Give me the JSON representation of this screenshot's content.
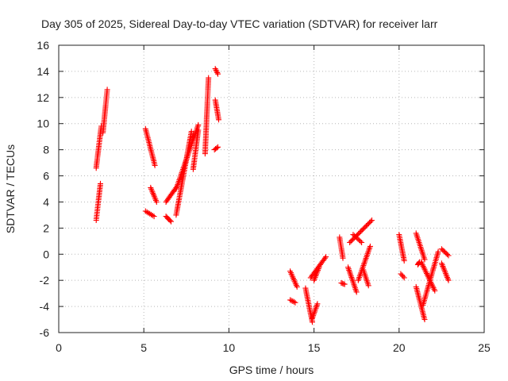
{
  "chart_data": {
    "type": "scatter",
    "title": "Day 305 of 2025, Sidereal Day-to-day VTEC variation (SDTVAR) for receiver larr",
    "xlabel": "GPS time / hours",
    "ylabel": "SDTVAR / TECUs",
    "xlim": [
      0,
      25
    ],
    "ylim": [
      -6,
      16
    ],
    "xticks": [
      0,
      5,
      10,
      15,
      20,
      25
    ],
    "yticks": [
      -6,
      -4,
      -2,
      0,
      2,
      4,
      6,
      8,
      10,
      12,
      14,
      16
    ],
    "grid": true,
    "marker": "+",
    "color": "#ff0000",
    "tracks": [
      {
        "x0": 2.2,
        "x1": 2.45,
        "y0": 2.6,
        "y1": 5.4
      },
      {
        "x0": 2.2,
        "x1": 2.5,
        "y0": 6.6,
        "y1": 9.8
      },
      {
        "x0": 2.6,
        "x1": 2.85,
        "y0": 9.3,
        "y1": 12.6
      },
      {
        "x0": 5.1,
        "x1": 5.6,
        "y0": 3.3,
        "y1": 2.9
      },
      {
        "x0": 5.1,
        "x1": 5.65,
        "y0": 9.6,
        "y1": 6.8
      },
      {
        "x0": 5.4,
        "x1": 5.75,
        "y0": 5.1,
        "y1": 4.0
      },
      {
        "x0": 6.3,
        "x1": 6.6,
        "y0": 2.9,
        "y1": 2.5
      },
      {
        "x0": 6.3,
        "x1": 6.9,
        "y0": 4.0,
        "y1": 5.1
      },
      {
        "x0": 6.9,
        "x1": 7.8,
        "y0": 3.0,
        "y1": 9.4
      },
      {
        "x0": 6.9,
        "x1": 8.2,
        "y0": 5.0,
        "y1": 9.9
      },
      {
        "x0": 7.9,
        "x1": 8.2,
        "y0": 6.5,
        "y1": 9.5
      },
      {
        "x0": 8.6,
        "x1": 8.8,
        "y0": 7.7,
        "y1": 13.5
      },
      {
        "x0": 9.2,
        "x1": 9.35,
        "y0": 14.2,
        "y1": 13.8
      },
      {
        "x0": 9.2,
        "x1": 9.4,
        "y0": 11.8,
        "y1": 10.3
      },
      {
        "x0": 9.15,
        "x1": 9.35,
        "y0": 8.0,
        "y1": 8.2
      },
      {
        "x0": 13.6,
        "x1": 14.0,
        "y0": -1.3,
        "y1": -2.5
      },
      {
        "x0": 13.6,
        "x1": 13.9,
        "y0": -3.5,
        "y1": -3.7
      },
      {
        "x0": 14.5,
        "x1": 14.9,
        "y0": -2.6,
        "y1": -5.2
      },
      {
        "x0": 14.8,
        "x1": 15.7,
        "y0": -1.8,
        "y1": -0.2
      },
      {
        "x0": 14.9,
        "x1": 15.2,
        "y0": -4.9,
        "y1": -3.8
      },
      {
        "x0": 15.0,
        "x1": 15.3,
        "y0": -2.0,
        "y1": -1.0
      },
      {
        "x0": 16.5,
        "x1": 16.7,
        "y0": 1.3,
        "y1": -0.3
      },
      {
        "x0": 16.6,
        "x1": 16.8,
        "y0": -2.2,
        "y1": -2.3
      },
      {
        "x0": 17.0,
        "x1": 17.5,
        "y0": -1.0,
        "y1": -2.9
      },
      {
        "x0": 17.1,
        "x1": 18.4,
        "y0": 0.9,
        "y1": 2.6
      },
      {
        "x0": 17.3,
        "x1": 17.8,
        "y0": 1.5,
        "y1": 0.9
      },
      {
        "x0": 17.6,
        "x1": 18.3,
        "y0": -2.0,
        "y1": 0.6
      },
      {
        "x0": 17.9,
        "x1": 18.2,
        "y0": -1.2,
        "y1": -2.4
      },
      {
        "x0": 20.0,
        "x1": 20.3,
        "y0": 1.5,
        "y1": -0.5
      },
      {
        "x0": 20.1,
        "x1": 20.3,
        "y0": -1.5,
        "y1": -1.8
      },
      {
        "x0": 21.0,
        "x1": 21.5,
        "y0": 1.6,
        "y1": -0.4
      },
      {
        "x0": 21.0,
        "x1": 21.5,
        "y0": -2.5,
        "y1": -5.0
      },
      {
        "x0": 21.1,
        "x1": 21.2,
        "y0": -0.8,
        "y1": -0.6
      },
      {
        "x0": 21.3,
        "x1": 22.1,
        "y0": -0.6,
        "y1": -2.8
      },
      {
        "x0": 21.4,
        "x1": 22.3,
        "y0": -3.9,
        "y1": 0.2
      },
      {
        "x0": 22.5,
        "x1": 22.9,
        "y0": 0.4,
        "y1": -0.1
      },
      {
        "x0": 22.5,
        "x1": 22.9,
        "y0": -0.7,
        "y1": -2.0
      }
    ]
  }
}
